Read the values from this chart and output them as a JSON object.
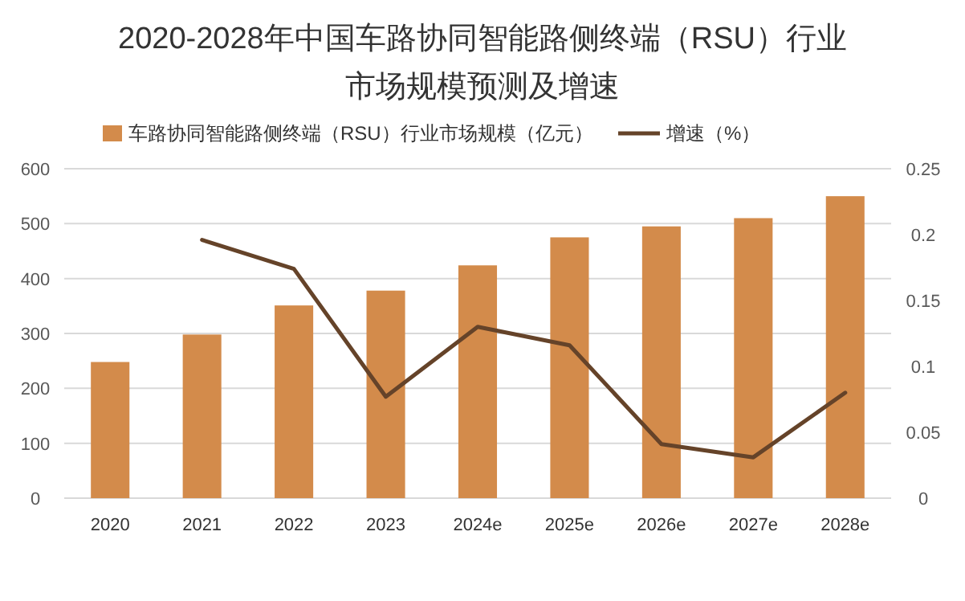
{
  "chart_data": {
    "type": "bar",
    "title": "2020-2028年中国车路协同智能路侧终端（RSU）行业市场规模预测及增速",
    "categories": [
      "2020",
      "2021",
      "2022",
      "2023",
      "2024e",
      "2025e",
      "2026e",
      "2027e",
      "2028e"
    ],
    "series": [
      {
        "name": "车路协同智能路侧终端（RSU）行业市场规模（亿元）",
        "color": "#d38b4b",
        "values": [
          248,
          298,
          351,
          378,
          424,
          475,
          495,
          510,
          550
        ]
      },
      {
        "name": "增速（%）",
        "type": "line",
        "axis": "y2",
        "color": "#654329",
        "values": [
          null,
          0.196,
          0.174,
          0.077,
          0.13,
          0.116,
          0.041,
          0.031,
          0.08
        ]
      }
    ],
    "ylim": [
      0,
      600
    ],
    "yticks": [
      0,
      100,
      200,
      300,
      400,
      500,
      600
    ],
    "y2lim": [
      0,
      0.25
    ],
    "y2ticks": [
      0,
      0.05,
      0.1,
      0.15,
      0.2,
      0.25
    ],
    "grid": "y",
    "legend": "top",
    "marker": "none",
    "line_style": "solid"
  }
}
